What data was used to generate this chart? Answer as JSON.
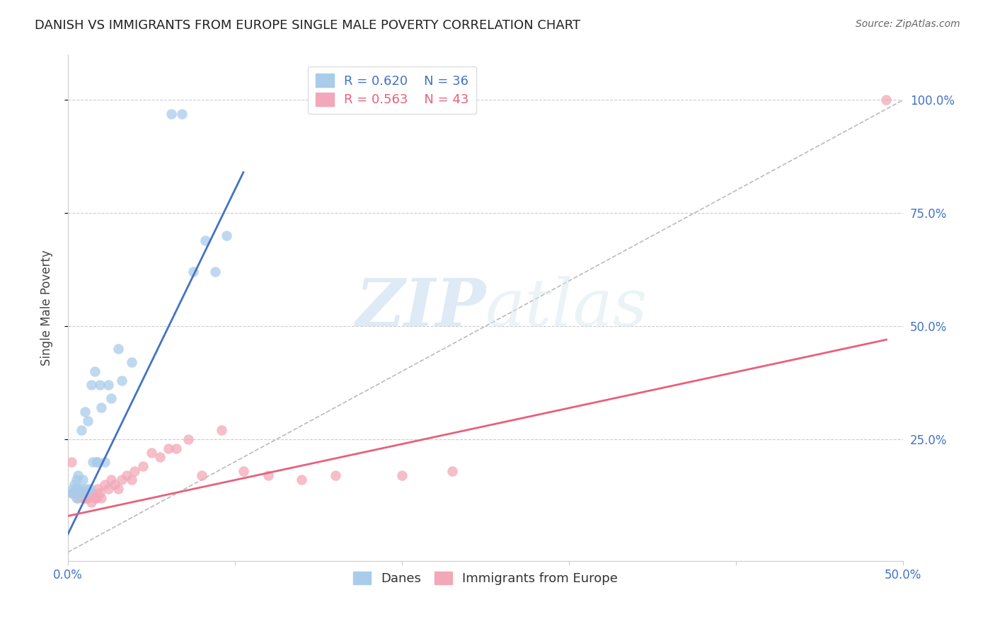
{
  "title": "DANISH VS IMMIGRANTS FROM EUROPE SINGLE MALE POVERTY CORRELATION CHART",
  "source": "Source: ZipAtlas.com",
  "ylabel": "Single Male Poverty",
  "xlim": [
    0.0,
    0.5
  ],
  "ylim": [
    -0.02,
    1.1
  ],
  "danes_R": 0.62,
  "danes_N": 36,
  "immigrants_R": 0.563,
  "immigrants_N": 43,
  "danes_color": "#A8CCEA",
  "immigrants_color": "#F2A8B8",
  "danes_line_color": "#4472C4",
  "immigrants_line_color": "#E8607A",
  "danes_scatter_x": [
    0.002,
    0.003,
    0.004,
    0.004,
    0.005,
    0.005,
    0.006,
    0.006,
    0.007,
    0.008,
    0.008,
    0.009,
    0.01,
    0.01,
    0.011,
    0.012,
    0.013,
    0.014,
    0.015,
    0.016,
    0.017,
    0.018,
    0.019,
    0.02,
    0.022,
    0.024,
    0.026,
    0.03,
    0.032,
    0.038,
    0.062,
    0.068,
    0.075,
    0.082,
    0.088,
    0.095
  ],
  "danes_scatter_y": [
    0.13,
    0.14,
    0.13,
    0.15,
    0.12,
    0.16,
    0.14,
    0.17,
    0.13,
    0.14,
    0.27,
    0.16,
    0.13,
    0.31,
    0.14,
    0.29,
    0.14,
    0.37,
    0.2,
    0.4,
    0.2,
    0.2,
    0.37,
    0.32,
    0.2,
    0.37,
    0.34,
    0.45,
    0.38,
    0.42,
    0.97,
    0.97,
    0.62,
    0.69,
    0.62,
    0.7
  ],
  "immigrants_scatter_x": [
    0.002,
    0.003,
    0.004,
    0.005,
    0.006,
    0.007,
    0.008,
    0.009,
    0.01,
    0.011,
    0.012,
    0.013,
    0.014,
    0.015,
    0.016,
    0.017,
    0.018,
    0.019,
    0.02,
    0.022,
    0.024,
    0.026,
    0.028,
    0.03,
    0.032,
    0.035,
    0.038,
    0.04,
    0.045,
    0.05,
    0.055,
    0.06,
    0.065,
    0.072,
    0.08,
    0.092,
    0.105,
    0.12,
    0.14,
    0.16,
    0.2,
    0.23,
    0.49
  ],
  "immigrants_scatter_y": [
    0.2,
    0.13,
    0.13,
    0.14,
    0.12,
    0.13,
    0.13,
    0.12,
    0.12,
    0.12,
    0.12,
    0.13,
    0.11,
    0.13,
    0.12,
    0.12,
    0.14,
    0.13,
    0.12,
    0.15,
    0.14,
    0.16,
    0.15,
    0.14,
    0.16,
    0.17,
    0.16,
    0.18,
    0.19,
    0.22,
    0.21,
    0.23,
    0.23,
    0.25,
    0.17,
    0.27,
    0.18,
    0.17,
    0.16,
    0.17,
    0.17,
    0.18,
    1.0
  ],
  "danes_trend_x": [
    0.0,
    0.105
  ],
  "danes_trend_y": [
    0.04,
    0.84
  ],
  "immigrants_trend_x": [
    0.0,
    0.49
  ],
  "immigrants_trend_y": [
    0.08,
    0.47
  ],
  "diag_line_x": [
    0.0,
    0.5
  ],
  "diag_line_y": [
    0.0,
    1.0
  ],
  "watermark_zip": "ZIP",
  "watermark_atlas": "atlas",
  "background_color": "#FFFFFF",
  "grid_color": "#CCCCCC",
  "title_color": "#222222",
  "axis_label_color": "#444444",
  "tick_label_color": "#4472C4",
  "source_color": "#666666"
}
